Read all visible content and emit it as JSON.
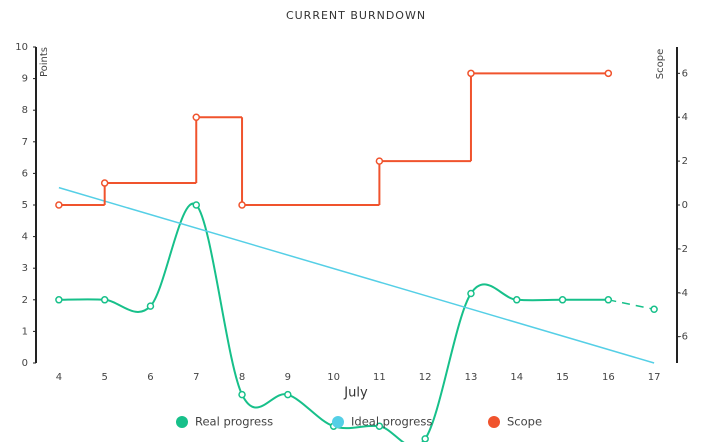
{
  "chart_data": {
    "type": "line",
    "title": "CURRENT BURNDOWN",
    "xlabel": "July",
    "ylabel": "Points",
    "y2label": "Scope",
    "xlim": [
      3.5,
      17.5
    ],
    "xticks": [
      4,
      5,
      6,
      7,
      8,
      9,
      10,
      11,
      12,
      13,
      14,
      15,
      16,
      17
    ],
    "ylim": [
      0,
      10
    ],
    "yticks": [
      0,
      1,
      2,
      3,
      4,
      5,
      6,
      7,
      8,
      9,
      10
    ],
    "y2lim": [
      -7.2,
      7.2
    ],
    "y2ticks": [
      -6,
      -4,
      -2,
      0,
      2,
      4,
      6
    ],
    "legend": "bottom",
    "series": [
      {
        "name": "Real progress",
        "color": "#17c08a",
        "style": "smooth",
        "x": [
          4,
          5,
          6,
          7,
          8,
          9,
          10,
          11,
          12,
          13,
          14,
          15,
          16,
          17
        ],
        "values": [
          2,
          2,
          1.8,
          5,
          -1,
          -1,
          -2,
          -2,
          -2.4,
          2.2,
          2,
          2,
          2,
          1.7
        ]
      },
      {
        "name": "Ideal progress",
        "color": "#55cfe6",
        "style": "straight",
        "x": [
          4,
          17
        ],
        "values": [
          5.55,
          0
        ]
      },
      {
        "name": "Scope",
        "color": "#f0532d",
        "style": "step",
        "axis": "y2",
        "x": [
          4,
          5,
          7,
          8,
          11,
          13,
          16
        ],
        "values": [
          0,
          1,
          4,
          0,
          2,
          6,
          6
        ]
      }
    ]
  }
}
